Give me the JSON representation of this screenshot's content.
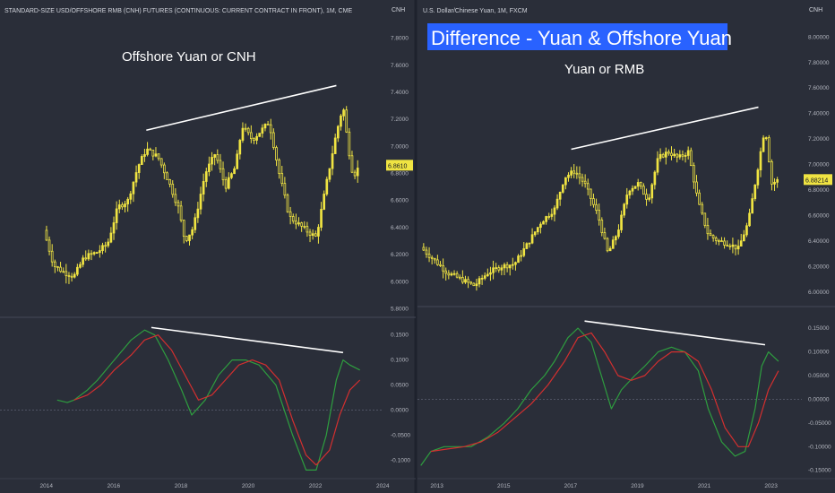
{
  "banner": {
    "text": "Difference - Yuan & Offshore Yuan",
    "background": "#2962ff",
    "color": "#ffffff"
  },
  "colors": {
    "background": "#2a2e39",
    "candle": "#f0e442",
    "macd_line": "#2e9e3f",
    "signal_line": "#d32f2f",
    "trendline": "#ffffff",
    "price_badge": "#f0e442"
  },
  "chart_data": [
    {
      "type": "candlestick",
      "panel": "left",
      "title": "STANDARD-SIZE USD/OFFSHORE RMB (CNH) FUTURES (CONTINUOUS: CURRENT CONTRACT IN FRONT), 1M, CME",
      "currency_label": "CNH",
      "annotation": "Offshore Yuan or CNH",
      "last_price": "6.8610",
      "ylim": [
        5.75,
        7.95
      ],
      "yticks": [
        "7.8000",
        "7.6000",
        "7.4000",
        "7.2000",
        "7.0000",
        "6.8000",
        "6.6000",
        "6.4000",
        "6.2000",
        "6.0000",
        "5.8000"
      ],
      "xticks": [
        "2014",
        "2016",
        "2018",
        "2020",
        "2022",
        "2024"
      ],
      "xlim": [
        2012.6,
        2024.0
      ],
      "series": [
        {
          "name": "",
          "x": [
            2013.9,
            2014.2,
            2014.5,
            2014.8,
            2015.1,
            2015.5,
            2015.8,
            2016.1,
            2016.4,
            2016.7,
            2016.95,
            2017.3,
            2017.6,
            2017.9,
            2018.1,
            2018.35,
            2018.7,
            2019.0,
            2019.3,
            2019.6,
            2019.8,
            2020.1,
            2020.3,
            2020.6,
            2020.9,
            2021.2,
            2021.5,
            2021.8,
            2022.0,
            2022.3,
            2022.6,
            2022.8,
            2022.95,
            2023.1,
            2023.3
          ],
          "y": [
            6.38,
            6.12,
            6.07,
            6.04,
            6.18,
            6.22,
            6.28,
            6.55,
            6.6,
            6.85,
            6.98,
            6.92,
            6.75,
            6.55,
            6.3,
            6.4,
            6.8,
            6.95,
            6.7,
            6.85,
            7.15,
            7.05,
            7.1,
            7.18,
            6.8,
            6.48,
            6.42,
            6.36,
            6.33,
            6.72,
            7.1,
            7.3,
            7.0,
            6.78,
            6.86
          ]
        }
      ],
      "trendlines": [
        {
          "x": [
            2016.95,
            2022.6
          ],
          "y": [
            7.12,
            7.45
          ]
        }
      ]
    },
    {
      "type": "line",
      "panel": "left-indicator",
      "ylim": [
        -0.13,
        0.18
      ],
      "yticks": [
        "0.1500",
        "0.1000",
        "0.0500",
        "0.0000",
        "-0.0500",
        "-0.1000"
      ],
      "series": [
        {
          "name": "",
          "role": "macd",
          "x": [
            2014.3,
            2014.6,
            2014.8,
            2015.2,
            2015.5,
            2016.0,
            2016.5,
            2016.9,
            2017.2,
            2017.6,
            2018.0,
            2018.3,
            2018.7,
            2019.1,
            2019.5,
            2019.9,
            2020.3,
            2020.8,
            2021.3,
            2021.7,
            2022.0,
            2022.3,
            2022.6,
            2022.8,
            2023.0,
            2023.3
          ],
          "y": [
            0.02,
            0.015,
            0.02,
            0.04,
            0.06,
            0.1,
            0.14,
            0.16,
            0.15,
            0.1,
            0.04,
            -0.01,
            0.02,
            0.07,
            0.1,
            0.1,
            0.09,
            0.05,
            -0.05,
            -0.12,
            -0.12,
            -0.05,
            0.06,
            0.1,
            0.09,
            0.08
          ]
        },
        {
          "name": "",
          "role": "signal",
          "x": [
            2014.8,
            2015.2,
            2015.6,
            2016.0,
            2016.5,
            2016.9,
            2017.3,
            2017.7,
            2018.1,
            2018.5,
            2018.9,
            2019.3,
            2019.7,
            2020.1,
            2020.5,
            2020.9,
            2021.3,
            2021.7,
            2022.0,
            2022.4,
            2022.7,
            2023.0,
            2023.3
          ],
          "y": [
            0.02,
            0.03,
            0.05,
            0.08,
            0.11,
            0.14,
            0.15,
            0.12,
            0.07,
            0.02,
            0.03,
            0.06,
            0.09,
            0.1,
            0.09,
            0.06,
            -0.02,
            -0.09,
            -0.11,
            -0.08,
            -0.01,
            0.04,
            0.06
          ]
        }
      ],
      "trendlines": [
        {
          "x": [
            2017.1,
            2022.8
          ],
          "y": [
            0.165,
            0.115
          ]
        }
      ]
    },
    {
      "type": "candlestick",
      "panel": "right",
      "title": "U.S. Dollar/Chinese Yuan, 1M, FXCM",
      "currency_label": "CNH",
      "annotation": "Yuan or RMB",
      "last_price": "6.88214",
      "ylim": [
        5.9,
        8.15
      ],
      "yticks": [
        "8.00000",
        "7.80000",
        "7.60000",
        "7.40000",
        "7.20000",
        "7.00000",
        "6.80000",
        "6.60000",
        "6.40000",
        "6.20000",
        "6.00000"
      ],
      "xticks": [
        "2013",
        "2015",
        "2017",
        "2019",
        "2021",
        "2023"
      ],
      "xlim": [
        2012.4,
        2023.9
      ],
      "series": [
        {
          "name": "",
          "x": [
            2012.5,
            2012.9,
            2013.3,
            2013.7,
            2014.1,
            2014.5,
            2014.9,
            2015.3,
            2015.7,
            2016.1,
            2016.5,
            2016.8,
            2017.1,
            2017.4,
            2017.8,
            2018.1,
            2018.4,
            2018.7,
            2019.0,
            2019.3,
            2019.6,
            2019.9,
            2020.2,
            2020.5,
            2020.8,
            2021.1,
            2021.4,
            2021.7,
            2022.0,
            2022.3,
            2022.6,
            2022.8,
            2023.0,
            2023.2
          ],
          "y": [
            6.35,
            6.25,
            6.15,
            6.1,
            6.05,
            6.15,
            6.2,
            6.22,
            6.38,
            6.55,
            6.65,
            6.9,
            6.95,
            6.85,
            6.6,
            6.3,
            6.48,
            6.8,
            6.85,
            6.72,
            7.05,
            7.1,
            7.05,
            7.1,
            6.7,
            6.45,
            6.4,
            6.38,
            6.34,
            6.55,
            7.0,
            7.3,
            6.85,
            6.88
          ]
        }
      ],
      "trendlines": [
        {
          "x": [
            2017.0,
            2022.6
          ],
          "y": [
            7.12,
            7.45
          ]
        }
      ]
    },
    {
      "type": "line",
      "panel": "right-indicator",
      "ylim": [
        -0.16,
        0.19
      ],
      "yticks": [
        "0.15000",
        "0.10000",
        "0.05000",
        "0.00000",
        "-0.05000",
        "-0.10000",
        "-0.15000"
      ],
      "series": [
        {
          "name": "",
          "role": "macd",
          "x": [
            2012.5,
            2012.8,
            2013.2,
            2013.6,
            2014.0,
            2014.5,
            2015.0,
            2015.4,
            2015.8,
            2016.2,
            2016.5,
            2016.9,
            2017.2,
            2017.6,
            2017.9,
            2018.2,
            2018.5,
            2018.9,
            2019.2,
            2019.6,
            2020.0,
            2020.4,
            2020.8,
            2021.1,
            2021.5,
            2021.9,
            2022.2,
            2022.5,
            2022.7,
            2022.9,
            2023.2
          ],
          "y": [
            -0.14,
            -0.11,
            -0.1,
            -0.1,
            -0.1,
            -0.08,
            -0.05,
            -0.02,
            0.02,
            0.05,
            0.08,
            0.13,
            0.15,
            0.12,
            0.05,
            -0.02,
            0.02,
            0.05,
            0.07,
            0.1,
            0.11,
            0.1,
            0.06,
            -0.02,
            -0.09,
            -0.12,
            -0.11,
            -0.02,
            0.07,
            0.1,
            0.08
          ]
        },
        {
          "name": "",
          "role": "signal",
          "x": [
            2012.8,
            2013.3,
            2013.8,
            2014.3,
            2014.8,
            2015.3,
            2015.8,
            2016.3,
            2016.8,
            2017.2,
            2017.6,
            2018.0,
            2018.4,
            2018.8,
            2019.2,
            2019.6,
            2020.0,
            2020.4,
            2020.8,
            2021.2,
            2021.6,
            2022.0,
            2022.3,
            2022.6,
            2022.9,
            2023.2
          ],
          "y": [
            -0.11,
            -0.105,
            -0.1,
            -0.09,
            -0.07,
            -0.04,
            -0.01,
            0.03,
            0.08,
            0.13,
            0.14,
            0.1,
            0.05,
            0.04,
            0.05,
            0.08,
            0.1,
            0.1,
            0.08,
            0.02,
            -0.06,
            -0.1,
            -0.1,
            -0.05,
            0.02,
            0.06
          ]
        }
      ],
      "trendlines": [
        {
          "x": [
            2017.4,
            2022.8
          ],
          "y": [
            0.165,
            0.115
          ]
        }
      ]
    }
  ]
}
